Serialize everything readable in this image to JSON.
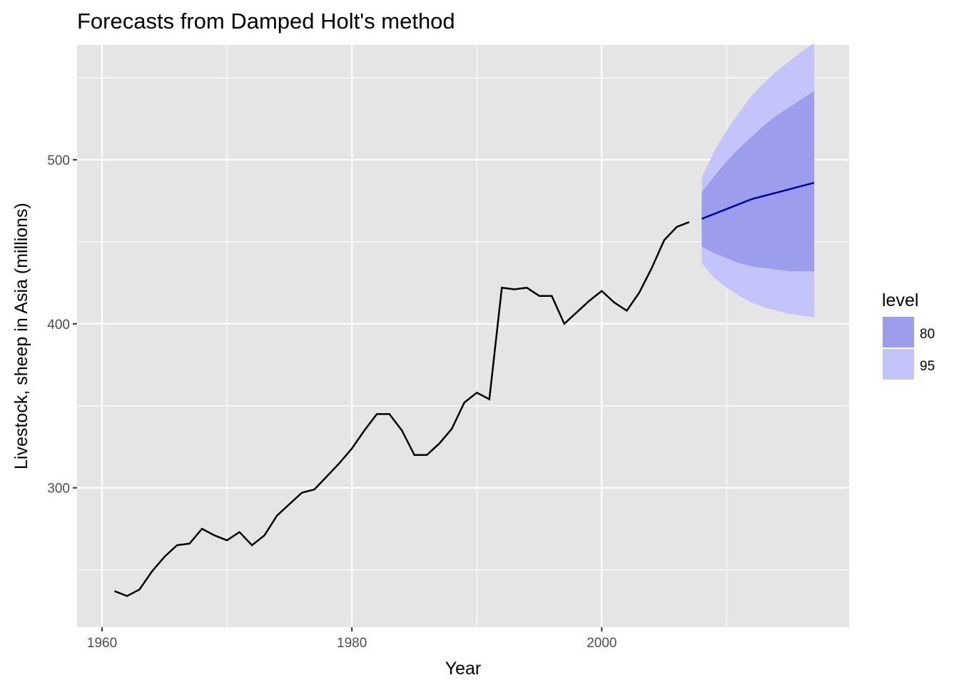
{
  "chart_data": {
    "type": "line",
    "title": "Forecasts from Damped Holt's method",
    "xlabel": "Year",
    "ylabel": "Livestock, sheep in Asia (millions)",
    "xlim": [
      1958,
      2019.8
    ],
    "ylim": [
      215,
      570
    ],
    "x_ticks": [
      1960,
      1980,
      2000
    ],
    "y_ticks": [
      300,
      400,
      500
    ],
    "x_tick_labels": [
      "1960",
      "1980",
      "2000"
    ],
    "y_tick_labels": [
      "300",
      "400",
      "500"
    ],
    "grid": true,
    "legend_position": "right",
    "legend": {
      "title": "level",
      "entries": [
        {
          "label": "80",
          "color": "#9c9ded"
        },
        {
          "label": "95",
          "color": "#c3c4fa"
        }
      ]
    },
    "colors": {
      "panel": "#e5e5e5",
      "grid": "#ffffff",
      "history": "#000000",
      "forecast": "#0000aa",
      "band80": "#9c9ded",
      "band95": "#c3c4fa"
    },
    "series": [
      {
        "role": "history",
        "x": [
          1961,
          1962,
          1963,
          1964,
          1965,
          1966,
          1967,
          1968,
          1969,
          1970,
          1971,
          1972,
          1973,
          1974,
          1975,
          1976,
          1977,
          1978,
          1979,
          1980,
          1981,
          1982,
          1983,
          1984,
          1985,
          1986,
          1987,
          1988,
          1989,
          1990,
          1991,
          1992,
          1993,
          1994,
          1995,
          1996,
          1997,
          1998,
          1999,
          2000,
          2001,
          2002,
          2003,
          2004,
          2005,
          2006,
          2007
        ],
        "y": [
          237,
          234,
          238,
          249,
          258,
          265,
          266,
          275,
          271,
          268,
          273,
          265,
          271,
          283,
          290,
          297,
          299,
          307,
          315,
          324,
          335,
          345,
          345,
          335,
          320,
          320,
          327,
          336,
          352,
          358,
          354,
          422,
          421,
          422,
          417,
          417,
          400,
          407,
          414,
          420,
          413,
          408,
          419,
          434,
          451,
          459,
          462
        ]
      },
      {
        "role": "forecast",
        "x": [
          2008,
          2009,
          2010,
          2011,
          2012,
          2013,
          2014,
          2015,
          2016,
          2017
        ],
        "y": [
          464,
          467,
          470,
          473,
          476,
          478,
          480,
          482,
          484,
          486
        ],
        "lo80": [
          447,
          443,
          440,
          437,
          435,
          434,
          433,
          432,
          432,
          432
        ],
        "hi80": [
          480,
          490,
          499,
          507,
          514,
          521,
          527,
          532,
          537,
          542
        ],
        "lo95": [
          437,
          428,
          422,
          417,
          413,
          410,
          408,
          406,
          405,
          404
        ],
        "hi95": [
          489,
          505,
          518,
          529,
          539,
          547,
          554,
          560,
          566,
          571
        ]
      }
    ]
  }
}
